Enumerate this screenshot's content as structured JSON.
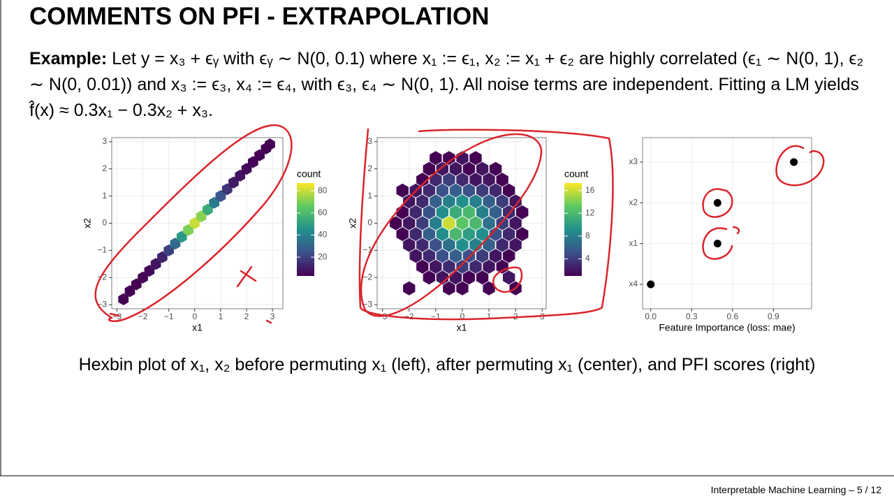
{
  "header": {
    "title": "COMMENTS ON PFI - EXTRAPOLATION"
  },
  "example": {
    "label": "Example:",
    "text": "Let y = x₃ + ϵᵧ with ϵᵧ ∼ N(0, 0.1) where x₁ := ϵ₁, x₂ := x₁ + ϵ₂ are highly correlated (ϵ₁ ∼ N(0, 1), ϵ₂ ∼ N(0, 0.01)) and x₃ := ϵ₃, x₄ := ϵ₄, with ϵ₃, ϵ₄ ∼ N(0, 1). All noise terms are independent. Fitting a LM yields f̂(x) ≈ 0.3x₁ − 0.3x₂ + x₃."
  },
  "caption": "Hexbin plot of x₁, x₂ before permuting x₁ (left), after permuting x₁ (center), and PFI scores (right)",
  "footer": "Interpretable Machine Learning  –  5 / 12",
  "chart_data": [
    {
      "type": "hexbin",
      "xlabel": "x1",
      "ylabel": "x2",
      "legend_title": "count",
      "xlim": [
        -3.2,
        3.4
      ],
      "ylim": [
        -3.15,
        3.15
      ],
      "xticks": [
        {
          "value": -3,
          "label": "−3"
        },
        {
          "value": -2,
          "label": "−2"
        },
        {
          "value": -1,
          "label": "−1"
        },
        0,
        1,
        2,
        3
      ],
      "yticks": [
        {
          "value": -3,
          "label": "−3"
        },
        {
          "value": -2,
          "label": "−2"
        },
        {
          "value": -1,
          "label": "−1"
        },
        0,
        1,
        2,
        3
      ],
      "color_range": [
        3,
        87
      ],
      "colorbar_ticks": [
        20,
        40,
        60,
        80
      ],
      "colors": [
        "#440154",
        "#3b528b",
        "#21918c",
        "#5ec962",
        "#fde725"
      ],
      "grid": true,
      "hexes": [
        [
          -2.75,
          -2.8,
          1
        ],
        [
          -2.5,
          -2.5,
          2
        ],
        [
          -2.25,
          -2.25,
          3
        ],
        [
          -2,
          -2,
          4
        ],
        [
          -1.75,
          -1.75,
          5
        ],
        [
          -1.5,
          -1.5,
          8
        ],
        [
          -1.25,
          -1.25,
          12
        ],
        [
          -1,
          -1,
          20
        ],
        [
          -0.75,
          -0.75,
          32
        ],
        [
          -0.5,
          -0.5,
          48
        ],
        [
          -0.25,
          -0.25,
          70
        ],
        [
          0,
          0,
          80
        ],
        [
          0.25,
          0.25,
          72
        ],
        [
          0.5,
          0.5,
          55
        ],
        [
          0.75,
          0.75,
          38
        ],
        [
          1,
          1,
          25
        ],
        [
          1.25,
          1.25,
          16
        ],
        [
          1.5,
          1.5,
          10
        ],
        [
          1.75,
          1.75,
          7
        ],
        [
          2,
          2,
          5
        ],
        [
          2.25,
          2.25,
          4
        ],
        [
          2.5,
          2.5,
          3
        ],
        [
          2.75,
          2.75,
          2
        ],
        [
          2.9,
          2.9,
          1
        ]
      ]
    },
    {
      "type": "hexbin",
      "xlabel": "x1",
      "ylabel": "x2",
      "legend_title": "count",
      "xlim": [
        -3.2,
        3.15
      ],
      "ylim": [
        -3.15,
        3.15
      ],
      "xticks": [
        {
          "value": -3,
          "label": "−3"
        },
        {
          "value": -2,
          "label": "−2"
        },
        {
          "value": -1,
          "label": "−1"
        },
        0,
        1,
        2,
        3
      ],
      "yticks": [
        {
          "value": -3,
          "label": "−3"
        },
        {
          "value": -2,
          "label": "−2"
        },
        {
          "value": -1,
          "label": "−1"
        },
        0,
        1,
        2,
        3
      ],
      "color_range": [
        1,
        17.3
      ],
      "colorbar_ticks": [
        4,
        8,
        12,
        16
      ],
      "colors": [
        "#440154",
        "#3b528b",
        "#21918c",
        "#5ec962",
        "#fde725"
      ],
      "grid": true,
      "hexes": [
        [
          -1,
          2.4,
          1
        ],
        [
          -0.5,
          2.4,
          1
        ],
        [
          0,
          2.4,
          2
        ],
        [
          0.5,
          2.4,
          1
        ],
        [
          -1.25,
          2,
          1
        ],
        [
          -0.75,
          2,
          2
        ],
        [
          -0.25,
          2,
          2
        ],
        [
          0.25,
          2,
          1
        ],
        [
          0.75,
          2,
          2
        ],
        [
          1.25,
          2,
          1
        ],
        [
          -1.5,
          1.6,
          1
        ],
        [
          -1,
          1.6,
          3
        ],
        [
          -0.5,
          1.6,
          4
        ],
        [
          0,
          1.6,
          3
        ],
        [
          0.5,
          1.6,
          2
        ],
        [
          1,
          1.6,
          2
        ],
        [
          1.5,
          1.6,
          1
        ],
        [
          -2.25,
          1.2,
          1
        ],
        [
          -1.75,
          1.2,
          2
        ],
        [
          -1.25,
          1.2,
          3
        ],
        [
          -0.75,
          1.2,
          5
        ],
        [
          -0.25,
          1.2,
          6
        ],
        [
          0.25,
          1.2,
          5
        ],
        [
          0.75,
          1.2,
          4
        ],
        [
          1.25,
          1.2,
          3
        ],
        [
          1.75,
          1.2,
          1
        ],
        [
          -2,
          0.8,
          2
        ],
        [
          -1.5,
          0.8,
          3
        ],
        [
          -1,
          0.8,
          6
        ],
        [
          -0.5,
          0.8,
          8
        ],
        [
          0,
          0.8,
          9
        ],
        [
          0.5,
          0.8,
          8
        ],
        [
          1,
          0.8,
          6
        ],
        [
          1.5,
          0.8,
          4
        ],
        [
          2,
          0.8,
          2
        ],
        [
          -2.25,
          0.4,
          1
        ],
        [
          -1.75,
          0.4,
          3
        ],
        [
          -1.25,
          0.4,
          5
        ],
        [
          -0.75,
          0.4,
          9
        ],
        [
          -0.25,
          0.4,
          11
        ],
        [
          0.25,
          0.4,
          12
        ],
        [
          0.75,
          0.4,
          8
        ],
        [
          1.25,
          0.4,
          6
        ],
        [
          1.75,
          0.4,
          3
        ],
        [
          2.25,
          0.4,
          1
        ],
        [
          -2.5,
          0,
          1
        ],
        [
          -2,
          0,
          2
        ],
        [
          -1.5,
          0,
          4
        ],
        [
          -1,
          0,
          8
        ],
        [
          -0.5,
          0,
          16
        ],
        [
          0,
          0,
          13
        ],
        [
          0.5,
          0,
          12
        ],
        [
          1,
          0,
          7
        ],
        [
          1.5,
          0,
          4
        ],
        [
          2,
          0,
          2
        ],
        [
          -2.25,
          -0.4,
          1
        ],
        [
          -1.75,
          -0.4,
          3
        ],
        [
          -1.25,
          -0.4,
          6
        ],
        [
          -0.75,
          -0.4,
          9
        ],
        [
          -0.25,
          -0.4,
          12
        ],
        [
          0.25,
          -0.4,
          10
        ],
        [
          0.75,
          -0.4,
          9
        ],
        [
          1.25,
          -0.4,
          5
        ],
        [
          1.75,
          -0.4,
          3
        ],
        [
          2.25,
          -0.4,
          1
        ],
        [
          -2,
          -0.8,
          2
        ],
        [
          -1.5,
          -0.8,
          3
        ],
        [
          -1,
          -0.8,
          5
        ],
        [
          -0.5,
          -0.8,
          7
        ],
        [
          0,
          -0.8,
          9
        ],
        [
          0.5,
          -0.8,
          8
        ],
        [
          1,
          -0.8,
          6
        ],
        [
          1.5,
          -0.8,
          3
        ],
        [
          2,
          -0.8,
          2
        ],
        [
          -1.75,
          -1.2,
          2
        ],
        [
          -1.25,
          -1.2,
          3
        ],
        [
          -0.75,
          -1.2,
          5
        ],
        [
          -0.25,
          -1.2,
          6
        ],
        [
          0.25,
          -1.2,
          5
        ],
        [
          0.75,
          -1.2,
          4
        ],
        [
          1.25,
          -1.2,
          2
        ],
        [
          1.75,
          -1.2,
          1
        ],
        [
          -1.5,
          -1.6,
          1
        ],
        [
          -1,
          -1.6,
          2
        ],
        [
          -0.5,
          -1.6,
          3
        ],
        [
          0,
          -1.6,
          4
        ],
        [
          0.5,
          -1.6,
          3
        ],
        [
          1,
          -1.6,
          2
        ],
        [
          1.5,
          -1.6,
          1
        ],
        [
          -1.25,
          -2,
          1
        ],
        [
          -0.75,
          -2,
          2
        ],
        [
          -0.25,
          -2,
          2
        ],
        [
          0.25,
          -2,
          1
        ],
        [
          0.75,
          -2,
          1
        ],
        [
          1.75,
          -2,
          2
        ],
        [
          -2,
          -2.4,
          1
        ],
        [
          -0.5,
          -2.4,
          1
        ],
        [
          0,
          -2.4,
          1
        ],
        [
          1,
          -2.4,
          1
        ],
        [
          2,
          -2.4,
          1
        ]
      ]
    },
    {
      "type": "dot",
      "xlabel": "Feature Importance (loss: mae)",
      "categories": [
        "x4",
        "x1",
        "x2",
        "x3"
      ],
      "values": [
        0,
        0.49,
        0.49,
        1.05
      ],
      "color": "#000000",
      "xlim": [
        -0.06,
        1.18
      ],
      "xticks": [
        {
          "value": 0,
          "label": "0.0"
        },
        0.3,
        0.6,
        0.9
      ],
      "grid": true
    }
  ]
}
